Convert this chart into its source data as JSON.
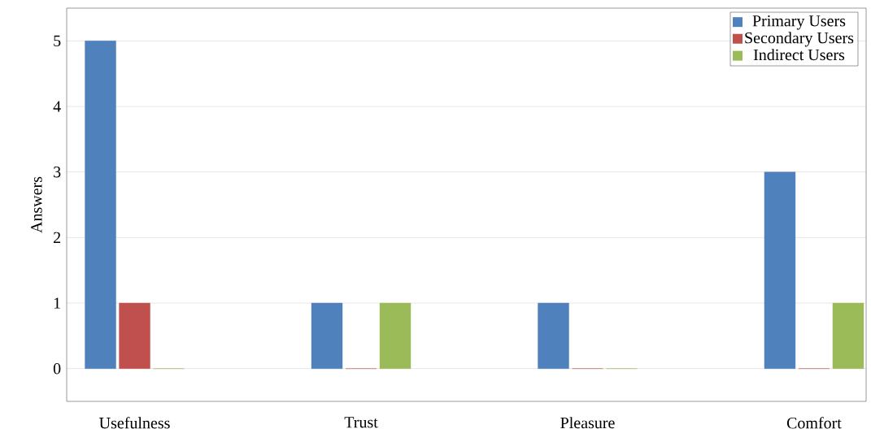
{
  "chart_data": {
    "type": "bar",
    "ylabel": "Answers",
    "categories": [
      "Usefulness",
      "Trust",
      "Pleasure",
      "Comfort"
    ],
    "series": [
      {
        "name": "Primary Users",
        "color": "#4f81bd",
        "values": [
          5,
          1,
          1,
          3
        ]
      },
      {
        "name": "Secondary Users",
        "color": "#c0504d",
        "values": [
          1,
          0,
          0,
          0
        ]
      },
      {
        "name": "Indirect Users",
        "color": "#9bbb59",
        "values": [
          0,
          1,
          0,
          1
        ]
      }
    ],
    "ylim": [
      -0.5,
      5.5
    ],
    "yticks": [
      0,
      1,
      2,
      3,
      4,
      5
    ],
    "grid": "y",
    "legend": "top right"
  }
}
